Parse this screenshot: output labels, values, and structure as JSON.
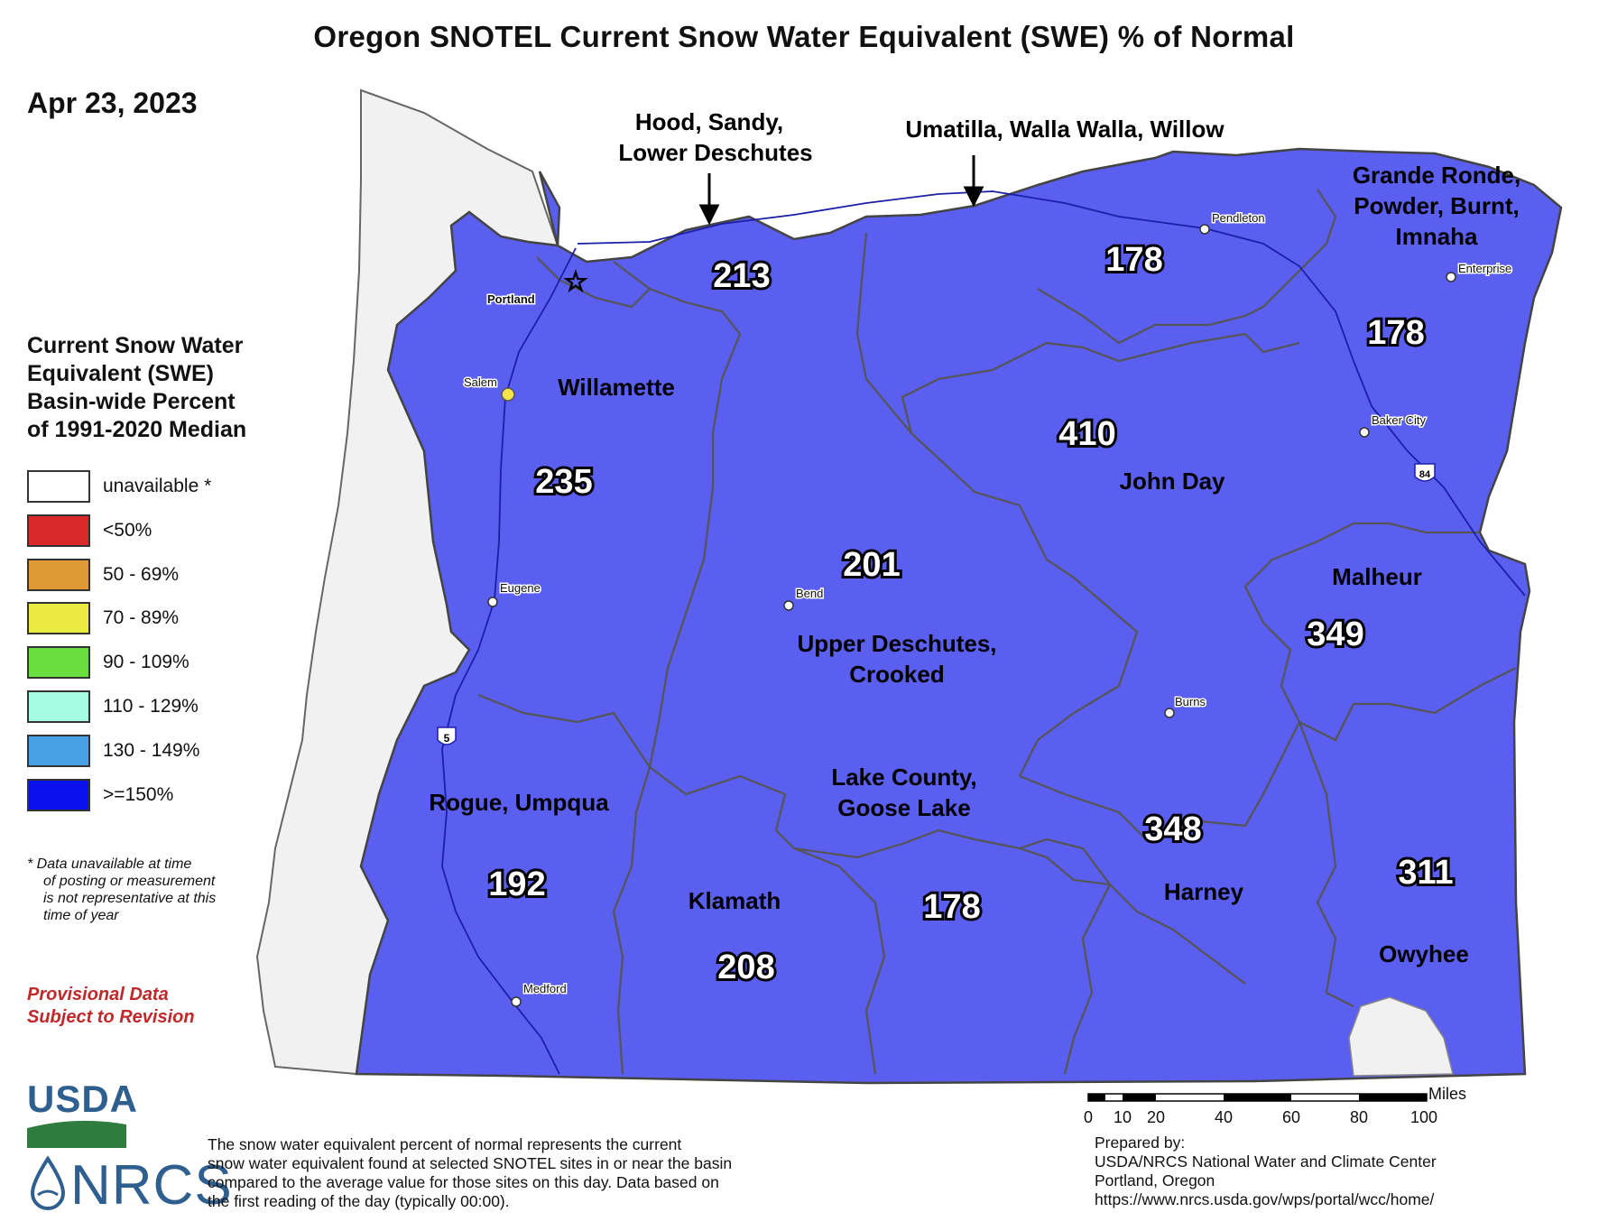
{
  "title": "Oregon SNOTEL Current Snow Water Equivalent (SWE) % of Normal",
  "date": "Apr 23, 2023",
  "colors": {
    "basin_fill": "#5a5ff0",
    "basin_border": "#555555",
    "unavailable": "#ffffff",
    "lt50": "#d9282a",
    "p50_69": "#e09a35",
    "p70_89": "#eaea40",
    "p90_109": "#6ade3e",
    "p110_129": "#a6fce0",
    "p130_149": "#47a2e3",
    "ge150": "#0a10ee",
    "provisional": "#c0282a"
  },
  "legend": {
    "title_lines": [
      "Current Snow Water",
      "Equivalent (SWE)",
      "Basin-wide Percent",
      "of 1991-2020 Median"
    ],
    "items": [
      {
        "label": "unavailable *",
        "color": "#ffffff"
      },
      {
        "label": "<50%",
        "color": "#d9282a"
      },
      {
        "label": "50 - 69%",
        "color": "#e09a35"
      },
      {
        "label": "70 - 89%",
        "color": "#eaea40"
      },
      {
        "label": "90 - 109%",
        "color": "#6ade3e"
      },
      {
        "label": "110 - 129%",
        "color": "#a6fce0"
      },
      {
        "label": "130 - 149%",
        "color": "#47a2e3"
      },
      {
        "label": ">=150%",
        "color": "#0a10ee"
      }
    ]
  },
  "footnote_lines": [
    "*  Data unavailable at time",
    "of posting or measurement",
    "is not representative at this",
    "time of year"
  ],
  "provisional_lines": [
    "Provisional Data",
    "Subject to Revision"
  ],
  "callouts": {
    "hood": [
      "Hood, Sandy,",
      "Lower Deschutes"
    ],
    "umatilla": "Umatilla, Walla Walla, Willow"
  },
  "basins": [
    {
      "name_lines": [
        "Willamette"
      ],
      "value": "235"
    },
    {
      "name_lines": [],
      "value": "213"
    },
    {
      "name_lines": [],
      "value": "178"
    },
    {
      "name_lines": [
        "Grande Ronde,",
        "Powder, Burnt,",
        "Imnaha"
      ],
      "value": "178"
    },
    {
      "name_lines": [
        "John Day"
      ],
      "value": "410"
    },
    {
      "name_lines": [
        "Upper Deschutes,",
        "Crooked"
      ],
      "value": "201"
    },
    {
      "name_lines": [
        "Malheur"
      ],
      "value": "349"
    },
    {
      "name_lines": [
        "Rogue, Umpqua"
      ],
      "value": "192"
    },
    {
      "name_lines": [
        "Lake County,",
        "Goose Lake"
      ],
      "value": "178"
    },
    {
      "name_lines": [
        "Klamath"
      ],
      "value": "208"
    },
    {
      "name_lines": [
        "Harney"
      ],
      "value": "348"
    },
    {
      "name_lines": [
        "Owyhee"
      ],
      "value": "311"
    }
  ],
  "cities": [
    "Portland",
    "Salem",
    "Eugene",
    "Bend",
    "Medford",
    "Pendleton",
    "Enterprise",
    "Baker City",
    "Burns"
  ],
  "highway_shields": [
    "5",
    "84"
  ],
  "scale": {
    "unit": "Miles",
    "ticks": [
      "0",
      "10",
      "20",
      "40",
      "60",
      "80",
      "100"
    ]
  },
  "logos": {
    "usda": "USDA",
    "nrcs": "NRCS"
  },
  "note": "The snow water equivalent percent of normal represents the current snow water equivalent found at selected SNOTEL sites in or near the basin compared to the average value for those sites on this day. Data based on the first reading of the day (typically 00:00).",
  "note_lines": [
    "The snow water equivalent percent of normal represents the current",
    "snow water equivalent found at selected SNOTEL sites in or near the basin",
    "compared to the average value for those sites on this day. Data based on",
    "the first reading of the day (typically 00:00)."
  ],
  "prepared_lines": [
    "Prepared by:",
    "USDA/NRCS National Water and Climate Center",
    "Portland, Oregon",
    "https://www.nrcs.usda.gov/wps/portal/wcc/home/"
  ]
}
